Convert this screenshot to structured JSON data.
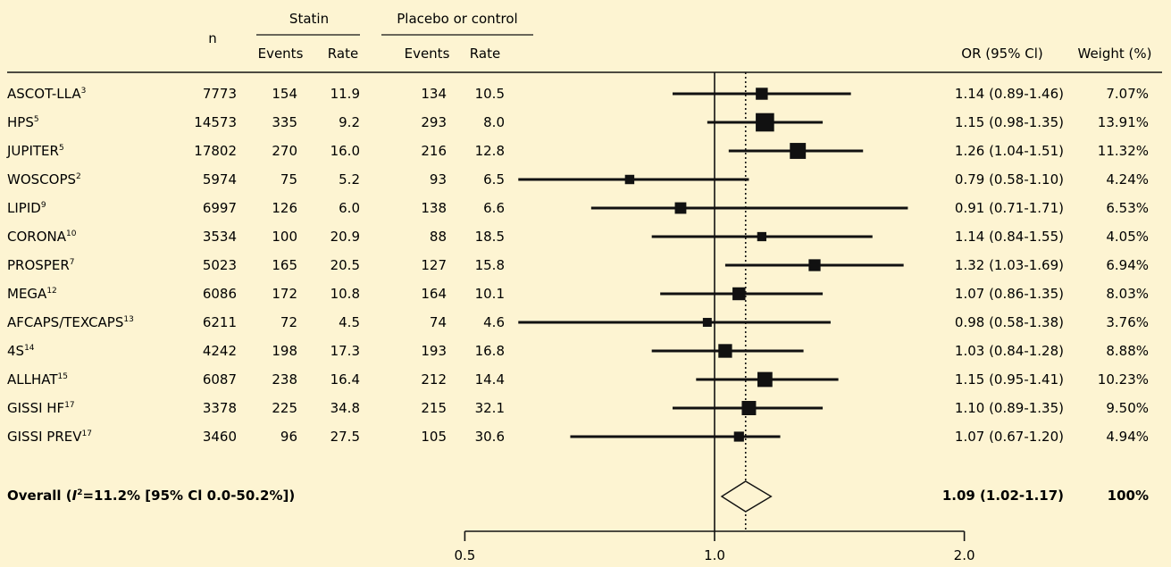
{
  "header": {
    "n": "n",
    "statin": "Statin",
    "placebo": "Placebo or control",
    "events": "Events",
    "rate": "Rate",
    "or": "OR (95% Cl)",
    "weight": "Weight (%)"
  },
  "overall": {
    "label_prefix": "Overall (",
    "label_i": "I",
    "label_sup": "2",
    "label_suffix": "=11.2% [95% Cl 0.0-50.2%])",
    "or": 1.09,
    "lo": 1.02,
    "hi": 1.17,
    "or_text": "1.09 (1.02-1.17)",
    "weight": "100%"
  },
  "chart_data": {
    "type": "forest",
    "xaxis": {
      "scale": "log",
      "ticks": [
        0.5,
        1.0,
        2.0
      ],
      "tick_labels": [
        "0.5",
        "1.0",
        "2.0"
      ],
      "reference": 1.0,
      "overall_line": 1.09
    },
    "studies": [
      {
        "name": "ASCOT-LLA",
        "ref": "3",
        "n": "7773",
        "se": "154",
        "sr": "11.9",
        "pe": "134",
        "pr": "10.5",
        "or": 1.14,
        "lo": 0.89,
        "hi": 1.46,
        "or_text": "1.14 (0.89-1.46)",
        "weight": 7.07,
        "weight_text": "7.07%"
      },
      {
        "name": "HPS",
        "ref": "5",
        "n": "14573",
        "se": "335",
        "sr": "9.2",
        "pe": "293",
        "pr": "8.0",
        "or": 1.15,
        "lo": 0.98,
        "hi": 1.35,
        "or_text": "1.15 (0.98-1.35)",
        "weight": 13.91,
        "weight_text": "13.91%"
      },
      {
        "name": "JUPITER",
        "ref": "5",
        "n": "17802",
        "se": "270",
        "sr": "16.0",
        "pe": "216",
        "pr": "12.8",
        "or": 1.26,
        "lo": 1.04,
        "hi": 1.51,
        "or_text": "1.26 (1.04-1.51)",
        "weight": 11.32,
        "weight_text": "11.32%"
      },
      {
        "name": "WOSCOPS",
        "ref": "2",
        "n": "5974",
        "se": "75",
        "sr": "5.2",
        "pe": "93",
        "pr": "6.5",
        "or": 0.79,
        "lo": 0.58,
        "hi": 1.1,
        "or_text": "0.79 (0.58-1.10)",
        "weight": 4.24,
        "weight_text": "4.24%"
      },
      {
        "name": "LIPID",
        "ref": "9",
        "n": "6997",
        "se": "126",
        "sr": "6.0",
        "pe": "138",
        "pr": "6.6",
        "or": 0.91,
        "lo": 0.71,
        "hi": 1.71,
        "or_text": "0.91 (0.71-1.71)",
        "weight": 6.53,
        "weight_text": "6.53%"
      },
      {
        "name": "CORONA",
        "ref": "10",
        "n": "3534",
        "se": "100",
        "sr": "20.9",
        "pe": "88",
        "pr": "18.5",
        "or": 1.14,
        "lo": 0.84,
        "hi": 1.55,
        "or_text": "1.14 (0.84-1.55)",
        "weight": 4.05,
        "weight_text": "4.05%"
      },
      {
        "name": "PROSPER",
        "ref": "7",
        "n": "5023",
        "se": "165",
        "sr": "20.5",
        "pe": "127",
        "pr": "15.8",
        "or": 1.32,
        "lo": 1.03,
        "hi": 1.69,
        "or_text": "1.32 (1.03-1.69)",
        "weight": 6.94,
        "weight_text": "6.94%"
      },
      {
        "name": "MEGA",
        "ref": "12",
        "n": "6086",
        "se": "172",
        "sr": "10.8",
        "pe": "164",
        "pr": "10.1",
        "or": 1.07,
        "lo": 0.86,
        "hi": 1.35,
        "or_text": "1.07 (0.86-1.35)",
        "weight": 8.03,
        "weight_text": "8.03%"
      },
      {
        "name": "AFCAPS/TEXCAPS",
        "ref": "13",
        "n": "6211",
        "se": "72",
        "sr": "4.5",
        "pe": "74",
        "pr": "4.6",
        "or": 0.98,
        "lo": 0.58,
        "hi": 1.38,
        "or_text": "0.98 (0.58-1.38)",
        "weight": 3.76,
        "weight_text": "3.76%"
      },
      {
        "name": "4S",
        "ref": "14",
        "n": "4242",
        "se": "198",
        "sr": "17.3",
        "pe": "193",
        "pr": "16.8",
        "or": 1.03,
        "lo": 0.84,
        "hi": 1.28,
        "or_text": "1.03 (0.84-1.28)",
        "weight": 8.88,
        "weight_text": "8.88%"
      },
      {
        "name": "ALLHAT",
        "ref": "15",
        "n": "6087",
        "se": "238",
        "sr": "16.4",
        "pe": "212",
        "pr": "14.4",
        "or": 1.15,
        "lo": 0.95,
        "hi": 1.41,
        "or_text": "1.15 (0.95-1.41)",
        "weight": 10.23,
        "weight_text": "10.23%"
      },
      {
        "name": "GISSI HF",
        "ref": "17",
        "n": "3378",
        "se": "225",
        "sr": "34.8",
        "pe": "215",
        "pr": "32.1",
        "or": 1.1,
        "lo": 0.89,
        "hi": 1.35,
        "or_text": "1.10 (0.89-1.35)",
        "weight": 9.5,
        "weight_text": "9.50%"
      },
      {
        "name": "GISSI PREV",
        "ref": "17",
        "n": "3460",
        "se": "96",
        "sr": "27.5",
        "pe": "105",
        "pr": "30.6",
        "or": 1.07,
        "lo": 0.67,
        "hi": 1.2,
        "or_text": "1.07 (0.67-1.20)",
        "weight": 4.94,
        "weight_text": "4.94%"
      }
    ]
  }
}
